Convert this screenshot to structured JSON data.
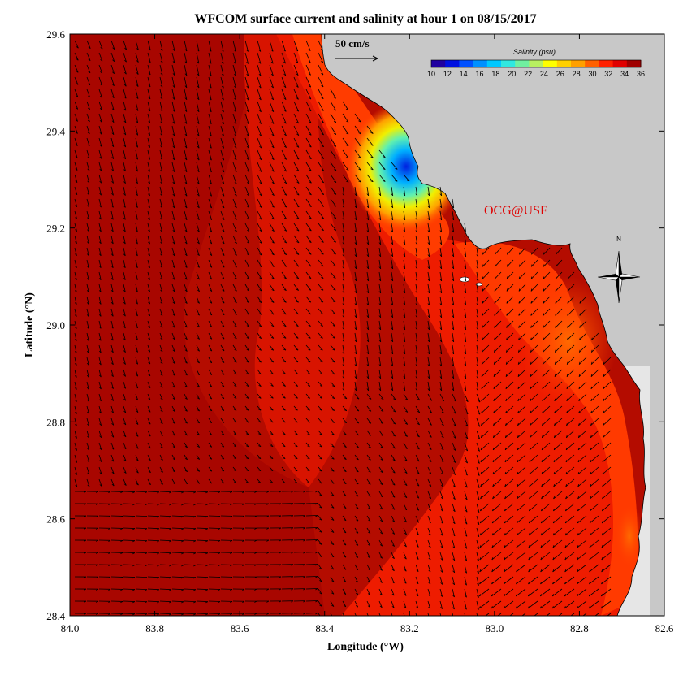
{
  "title": "WFCOM surface current and salinity at hour 1 on 08/15/2017",
  "x_axis": {
    "label": "Longitude (°W)",
    "ticks": [
      "84.0",
      "83.8",
      "83.6",
      "83.4",
      "83.2",
      "83.0",
      "82.8",
      "82.6"
    ]
  },
  "y_axis": {
    "label": "Latitude (°N)",
    "ticks": [
      "29.6",
      "29.4",
      "29.2",
      "29.0",
      "28.8",
      "28.6",
      "28.4"
    ]
  },
  "scale_arrow": {
    "label": "50 cm/s"
  },
  "colorbar": {
    "title": "Salinity (psu)",
    "ticks": [
      "10",
      "12",
      "14",
      "16",
      "18",
      "20",
      "22",
      "24",
      "26",
      "28",
      "30",
      "32",
      "34",
      "36"
    ],
    "colors": [
      "#2000a0",
      "#0010e0",
      "#0050ff",
      "#0090ff",
      "#00c8ff",
      "#30e8e0",
      "#70f0a0",
      "#b8f060",
      "#ffff00",
      "#ffd000",
      "#ffa000",
      "#ff6000",
      "#ff2000",
      "#e00000",
      "#a00000"
    ]
  },
  "credit": "OCG@USF",
  "compass": {
    "north_label": "N"
  },
  "colors": {
    "land": "#c8c8c8",
    "ocean_high_salinity": "#b80a00",
    "ocean_mid_salinity": "#ff2a00",
    "fresh_plume": "#0040ff",
    "credit": "#e00000"
  }
}
